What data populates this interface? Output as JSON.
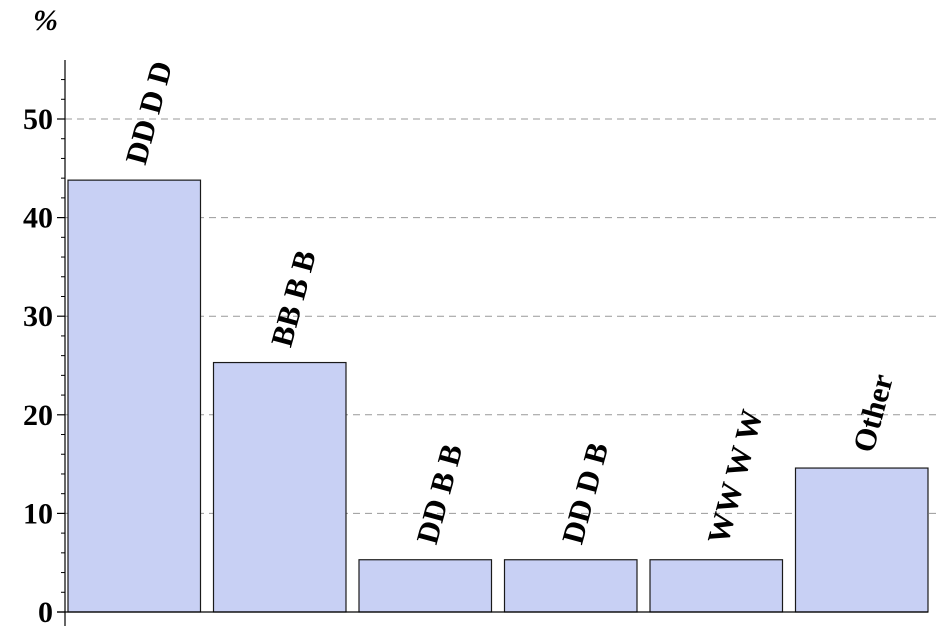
{
  "chart_data": {
    "type": "bar",
    "ylabel": "%",
    "categories": [
      "DD D D",
      "BB B B",
      "DD B B",
      "DD D B",
      "WW W W",
      "Other"
    ],
    "values": [
      43.8,
      25.3,
      5.3,
      5.3,
      5.3,
      14.6
    ],
    "ylim": [
      0,
      55
    ],
    "yticks": [
      0,
      10,
      20,
      30,
      40,
      50
    ],
    "grid": "horizontal-dashed",
    "legend": "none",
    "bar_color": "#c8d0f4",
    "bar_edge_color": "#1a1a1a",
    "grid_color": "#999999",
    "axis_color": "#000000"
  }
}
